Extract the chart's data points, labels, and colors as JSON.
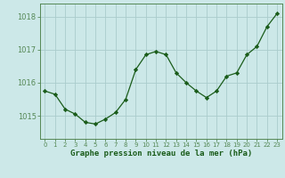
{
  "x": [
    0,
    1,
    2,
    3,
    4,
    5,
    6,
    7,
    8,
    9,
    10,
    11,
    12,
    13,
    14,
    15,
    16,
    17,
    18,
    19,
    20,
    21,
    22,
    23
  ],
  "y": [
    1015.75,
    1015.65,
    1015.2,
    1015.05,
    1014.8,
    1014.75,
    1014.9,
    1015.1,
    1015.5,
    1016.4,
    1016.85,
    1016.95,
    1016.85,
    1016.3,
    1016.0,
    1015.75,
    1015.55,
    1015.75,
    1016.2,
    1016.3,
    1016.85,
    1017.1,
    1017.7,
    1018.1
  ],
  "line_color": "#1a5c1a",
  "marker": "D",
  "marker_size": 2.2,
  "bg_color": "#cce8e8",
  "grid_color": "#aacccc",
  "xlabel": "Graphe pression niveau de la mer (hPa)",
  "xlabel_color": "#1a5c1a",
  "tick_color": "#1a5c1a",
  "ylabel_ticks": [
    1015,
    1016,
    1017,
    1018
  ],
  "ylim": [
    1014.3,
    1018.4
  ],
  "xlim": [
    -0.5,
    23.5
  ],
  "spine_color": "#558855"
}
